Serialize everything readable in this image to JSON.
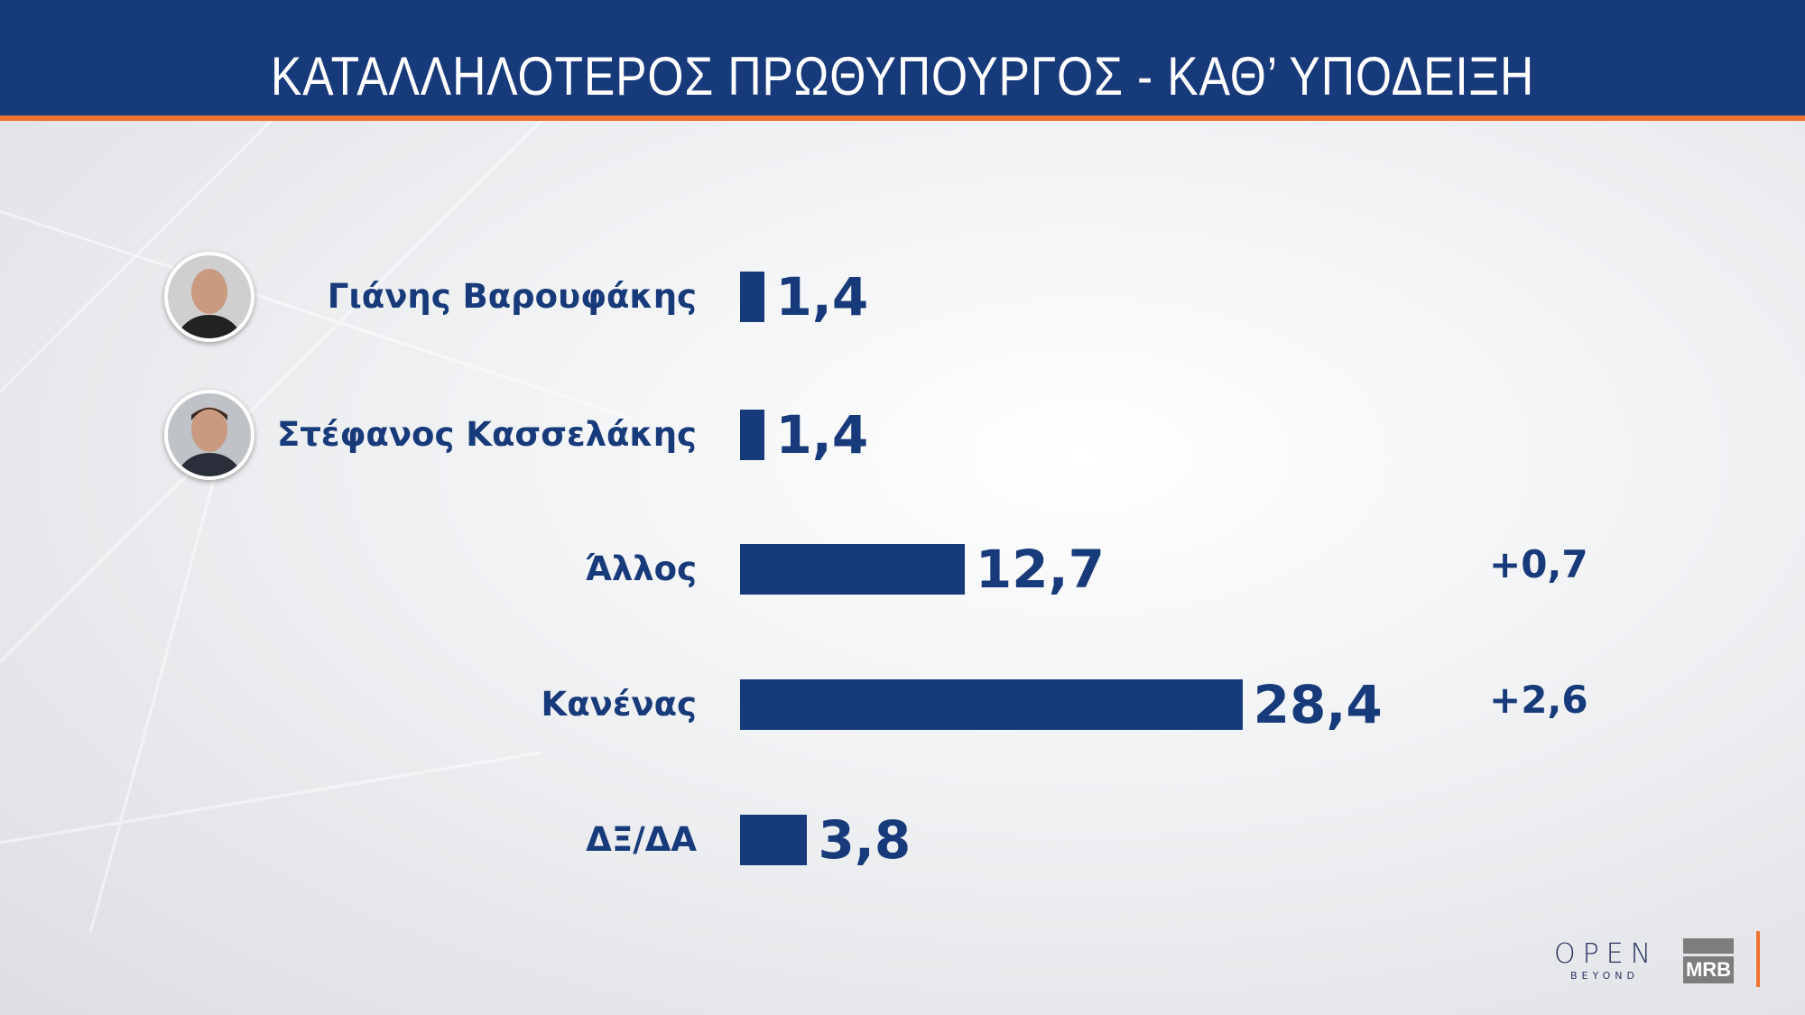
{
  "header": {
    "title": "ΚΑΤΑΛΛΗΛΟΤΕΡΟΣ  ΠΡΩΘΥΠΟΥΡΓΟΣ - ΚΑΘ’ ΥΠΟΔΕΙΞΗ"
  },
  "chart_data": {
    "type": "bar",
    "orientation": "horizontal",
    "title": "ΚΑΤΑΛΛΗΛΟΤΕΡΟΣ  ΠΡΩΘΥΠΟΥΡΓΟΣ - ΚΑΘ’ ΥΠΟΔΕΙΞΗ",
    "categories": [
      "Γιάνης Βαρουφάκης",
      "Στέφανος Κασσελάκης",
      "Άλλος",
      "Κανένας",
      "ΔΞ/ΔΑ"
    ],
    "values": [
      1.4,
      1.4,
      12.7,
      28.4,
      3.8
    ],
    "value_labels": [
      "1,4",
      "1,4",
      "12,7",
      "28,4",
      "3,8"
    ],
    "changes": [
      "",
      "",
      "+0,7",
      "+2,6",
      ""
    ],
    "avatars": [
      true,
      true,
      false,
      false,
      false
    ],
    "grid": false,
    "bar_color": "#173a7a"
  },
  "colors": {
    "primary": "#173a7a",
    "accent": "#f0722c"
  },
  "logos": {
    "open_main": "OPEN",
    "open_sub": "BEYOND",
    "mrb": "MRB"
  }
}
